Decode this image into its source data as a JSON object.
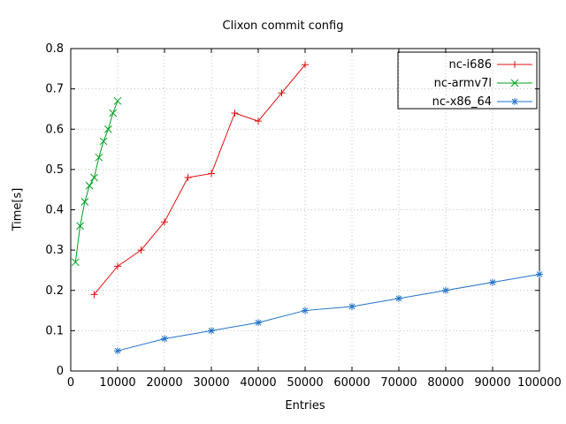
{
  "window": {
    "background": "#ffffff"
  },
  "chart_data": {
    "type": "line",
    "title": "Clixon commit config",
    "xlabel": "Entries",
    "ylabel": "Time[s]",
    "xlim": [
      0,
      100000
    ],
    "ylim": [
      0,
      0.8
    ],
    "xticks": [
      0,
      10000,
      20000,
      30000,
      40000,
      50000,
      60000,
      70000,
      80000,
      90000,
      100000
    ],
    "xtick_labels": [
      "0",
      "10000",
      "20000",
      "30000",
      "40000",
      "50000",
      "60000",
      "70000",
      "80000",
      "90000",
      "100000"
    ],
    "yticks": [
      0,
      0.1,
      0.2,
      0.3,
      0.4,
      0.5,
      0.6,
      0.7,
      0.8
    ],
    "ytick_labels": [
      "0",
      "0.1",
      "0.2",
      "0.3",
      "0.4",
      "0.5",
      "0.6",
      "0.7",
      "0.8"
    ],
    "grid": true,
    "legend": {
      "position": "top-right",
      "boxed": true
    },
    "colors": {
      "axis": "#000000",
      "grid": "#c0c0c0",
      "text": "#000000"
    },
    "series": [
      {
        "name": "nc-i686",
        "color": "#e01010",
        "marker": "plus",
        "points": [
          [
            5000,
            0.19
          ],
          [
            10000,
            0.26
          ],
          [
            15000,
            0.3
          ],
          [
            20000,
            0.37
          ],
          [
            25000,
            0.48
          ],
          [
            30000,
            0.49
          ],
          [
            35000,
            0.64
          ],
          [
            40000,
            0.62
          ],
          [
            45000,
            0.69
          ],
          [
            50000,
            0.76
          ]
        ]
      },
      {
        "name": "nc-armv7l",
        "color": "#00a020",
        "marker": "x",
        "points": [
          [
            1000,
            0.27
          ],
          [
            2000,
            0.36
          ],
          [
            3000,
            0.42
          ],
          [
            4000,
            0.46
          ],
          [
            5000,
            0.48
          ],
          [
            6000,
            0.53
          ],
          [
            7000,
            0.57
          ],
          [
            8000,
            0.6
          ],
          [
            9000,
            0.64
          ],
          [
            10000,
            0.67
          ]
        ]
      },
      {
        "name": "nc-x86_64",
        "color": "#2272c8",
        "marker": "asterisk",
        "points": [
          [
            10000,
            0.05
          ],
          [
            20000,
            0.08
          ],
          [
            30000,
            0.1
          ],
          [
            40000,
            0.12
          ],
          [
            50000,
            0.15
          ],
          [
            60000,
            0.16
          ],
          [
            70000,
            0.18
          ],
          [
            80000,
            0.2
          ],
          [
            90000,
            0.22
          ],
          [
            100000,
            0.24
          ]
        ]
      }
    ]
  }
}
